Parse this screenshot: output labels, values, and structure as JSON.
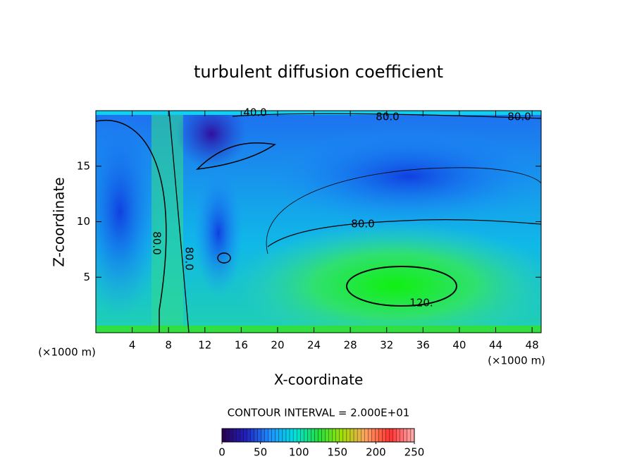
{
  "chart_data": {
    "type": "contour",
    "title": "turbulent diffusion coefficient",
    "x_label": "X-coordinate",
    "y_label": "Z-coordinate",
    "x_unit": "(×1000 m)",
    "y_unit": "(×1000 m)",
    "xlim": [
      0,
      49
    ],
    "xticks": [
      4,
      8,
      12,
      16,
      20,
      24,
      28,
      32,
      36,
      40,
      44,
      48
    ],
    "ylim": [
      0,
      20
    ],
    "yticks": [
      5,
      10,
      15
    ],
    "contour_labels": [
      "40.0",
      "80.0",
      "80.0",
      "80.0",
      "120.",
      "80.0",
      "80.0"
    ],
    "contour_interval": "CONTOUR INTERVAL = 2.000E+01",
    "colorbar": {
      "lim": [
        0,
        250
      ],
      "ticks": [
        0,
        50,
        100,
        150,
        200,
        250
      ],
      "colors": [
        "#2a0050",
        "#2020c0",
        "#1e90ff",
        "#00e0e0",
        "#20e040",
        "#a0e000",
        "#ffa060",
        "#ff3030",
        "#ffb0b0"
      ]
    }
  }
}
